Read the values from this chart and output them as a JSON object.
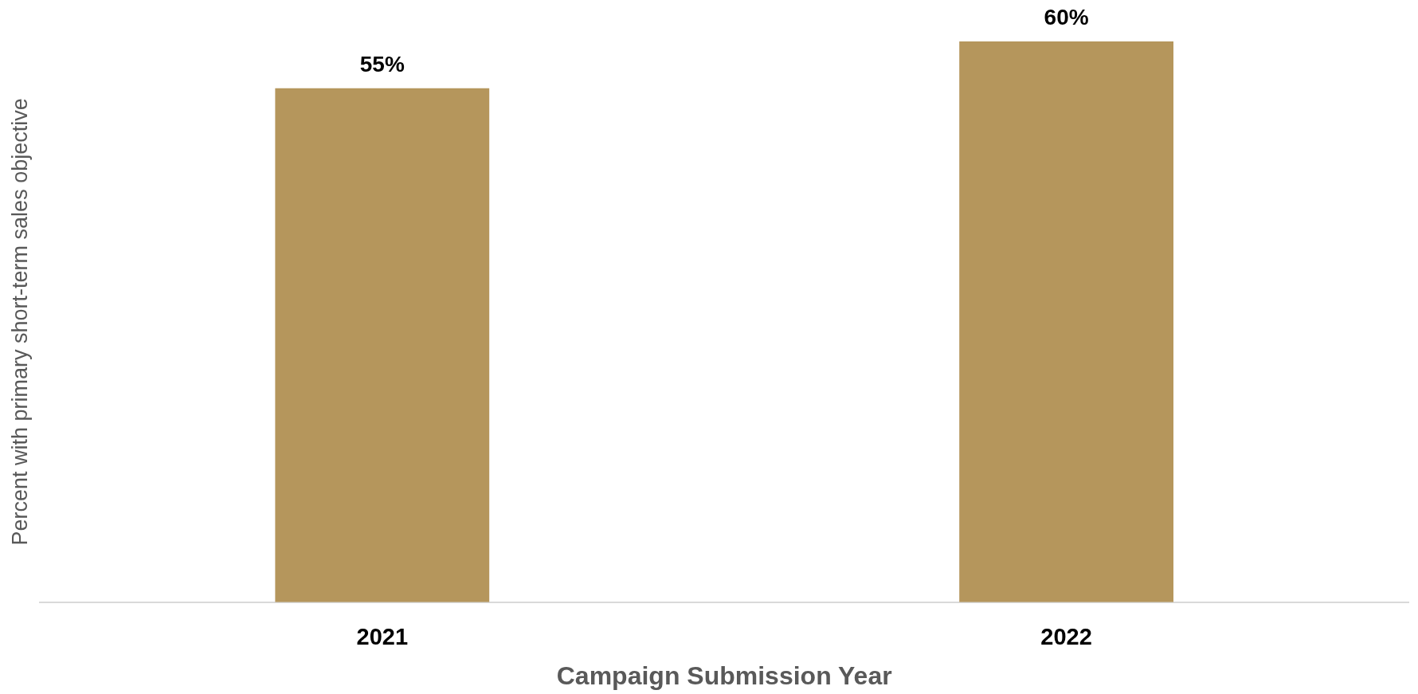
{
  "chart_data": {
    "type": "bar",
    "xlabel": "Campaign Submission Year",
    "ylabel": "Percent with primary short-term sales objective",
    "categories": [
      "2021",
      "2022"
    ],
    "values": [
      55,
      60
    ],
    "value_labels": [
      "55%",
      "60%"
    ],
    "color": "#b5965c",
    "grid": false,
    "legend": false,
    "tick_labels": "x"
  }
}
